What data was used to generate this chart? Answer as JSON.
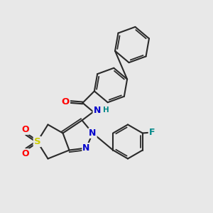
{
  "background_color": "#e8e8e8",
  "bond_color": "#2a2a2a",
  "bond_width": 1.5,
  "figsize": [
    3.0,
    3.0
  ],
  "dpi": 100,
  "atom_colors": {
    "O": "#ff0000",
    "N": "#0000cc",
    "S": "#cccc00",
    "F": "#008888",
    "H": "#008888",
    "C": "#2a2a2a"
  },
  "font_size": 8.5
}
